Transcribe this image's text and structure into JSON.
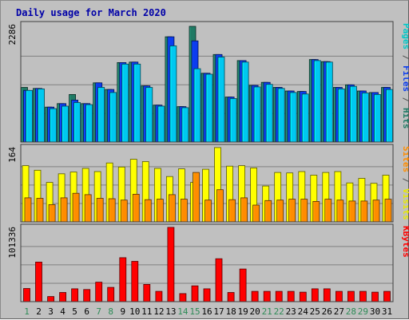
{
  "title": "Daily usage for March 2020",
  "chart_data": [
    {
      "type": "bar",
      "panel": "top",
      "ymax_label": "2286",
      "ylim": [
        0,
        2286
      ],
      "categories": [
        "1",
        "2",
        "3",
        "4",
        "5",
        "6",
        "7",
        "8",
        "9",
        "10",
        "11",
        "12",
        "13",
        "14",
        "15",
        "16",
        "17",
        "18",
        "19",
        "20",
        "21",
        "22",
        "23",
        "24",
        "25",
        "26",
        "27",
        "28",
        "29",
        "30",
        "31"
      ],
      "series": [
        {
          "name": "Hits",
          "color": "#1f7a64",
          "values": [
            1080,
            1060,
            690,
            760,
            940,
            760,
            1170,
            1040,
            1570,
            1580,
            1110,
            730,
            2080,
            700,
            2286,
            1360,
            1730,
            890,
            1610,
            1120,
            1180,
            1080,
            1010,
            1000,
            1630,
            1590,
            1080,
            1130,
            1010,
            980,
            1080
          ]
        },
        {
          "name": "Files",
          "color": "#0b3cf0",
          "values": [
            1020,
            1060,
            690,
            760,
            830,
            760,
            1170,
            1040,
            1570,
            1580,
            1110,
            730,
            2080,
            700,
            2000,
            1360,
            1730,
            890,
            1610,
            1120,
            1180,
            1080,
            1010,
            1000,
            1630,
            1590,
            1080,
            1130,
            1010,
            980,
            1080
          ]
        },
        {
          "name": "Pages",
          "color": "#00c8f0",
          "values": [
            1020,
            1050,
            660,
            710,
            780,
            740,
            1080,
            980,
            1540,
            1540,
            1080,
            710,
            1900,
            680,
            1450,
            1340,
            1680,
            860,
            1580,
            1090,
            1140,
            1060,
            980,
            950,
            1610,
            1580,
            1050,
            1100,
            970,
            940,
            1040
          ]
        }
      ],
      "right_labels": [
        {
          "text": "Pages",
          "color": "#00c8c8"
        },
        {
          "text": " / ",
          "color": "#505050"
        },
        {
          "text": "Files",
          "color": "#0b3cf0"
        },
        {
          "text": " / ",
          "color": "#505050"
        },
        {
          "text": "Hits",
          "color": "#1f7a64"
        }
      ]
    },
    {
      "type": "bar",
      "panel": "middle",
      "ymax_label": "164",
      "ylim": [
        0,
        164
      ],
      "categories": [
        "1",
        "2",
        "3",
        "4",
        "5",
        "6",
        "7",
        "8",
        "9",
        "10",
        "11",
        "12",
        "13",
        "14",
        "15",
        "16",
        "17",
        "18",
        "19",
        "20",
        "21",
        "22",
        "23",
        "24",
        "25",
        "26",
        "27",
        "28",
        "29",
        "30",
        "31"
      ],
      "series": [
        {
          "name": "Visits",
          "color": "#ffff00",
          "values": [
            124,
            114,
            87,
            106,
            110,
            118,
            111,
            130,
            121,
            138,
            133,
            118,
            100,
            117,
            87,
            116,
            164,
            123,
            124,
            119,
            79,
            109,
            108,
            111,
            103,
            109,
            111,
            86,
            96,
            85,
            103
          ]
        },
        {
          "name": "Sites",
          "color": "#ff8c00",
          "values": [
            53,
            52,
            38,
            53,
            63,
            60,
            52,
            51,
            48,
            61,
            49,
            50,
            60,
            50,
            109,
            48,
            71,
            49,
            53,
            37,
            47,
            48,
            50,
            50,
            45,
            50,
            48,
            46,
            46,
            48,
            50
          ]
        }
      ],
      "right_labels": [
        {
          "text": "Sites",
          "color": "#ff8c00"
        },
        {
          "text": " / ",
          "color": "#505050"
        },
        {
          "text": "Visits",
          "color": "#e8e800"
        }
      ]
    },
    {
      "type": "bar",
      "panel": "bottom",
      "ymax_label": "101336",
      "ylim": [
        0,
        101336
      ],
      "categories": [
        "1",
        "2",
        "3",
        "4",
        "5",
        "6",
        "7",
        "8",
        "9",
        "10",
        "11",
        "12",
        "13",
        "14",
        "15",
        "16",
        "17",
        "18",
        "19",
        "20",
        "21",
        "22",
        "23",
        "24",
        "25",
        "26",
        "27",
        "28",
        "29",
        "30",
        "31"
      ],
      "series": [
        {
          "name": "KBytes",
          "color": "#ff0000",
          "values": [
            18000,
            54000,
            7000,
            12500,
            17500,
            16500,
            26500,
            19500,
            60000,
            55000,
            23500,
            14000,
            101336,
            11000,
            21500,
            17500,
            58500,
            12500,
            44500,
            14000,
            14000,
            14000,
            14000,
            13000,
            17500,
            17500,
            14000,
            14000,
            14000,
            13000,
            14000
          ]
        }
      ],
      "right_labels": [
        {
          "text": "KBytes",
          "color": "#ff0000"
        }
      ]
    }
  ],
  "x_labels": {
    "days": [
      "1",
      "2",
      "3",
      "4",
      "5",
      "6",
      "7",
      "8",
      "9",
      "10",
      "11",
      "12",
      "13",
      "14",
      "15",
      "16",
      "17",
      "18",
      "19",
      "20",
      "21",
      "22",
      "23",
      "24",
      "25",
      "26",
      "27",
      "28",
      "29",
      "30",
      "31"
    ],
    "weekend_days": [
      "1",
      "7",
      "8",
      "14",
      "15",
      "21",
      "22",
      "28",
      "29"
    ],
    "weekend_color": "#2e8b57",
    "weekday_color": "#000000"
  }
}
